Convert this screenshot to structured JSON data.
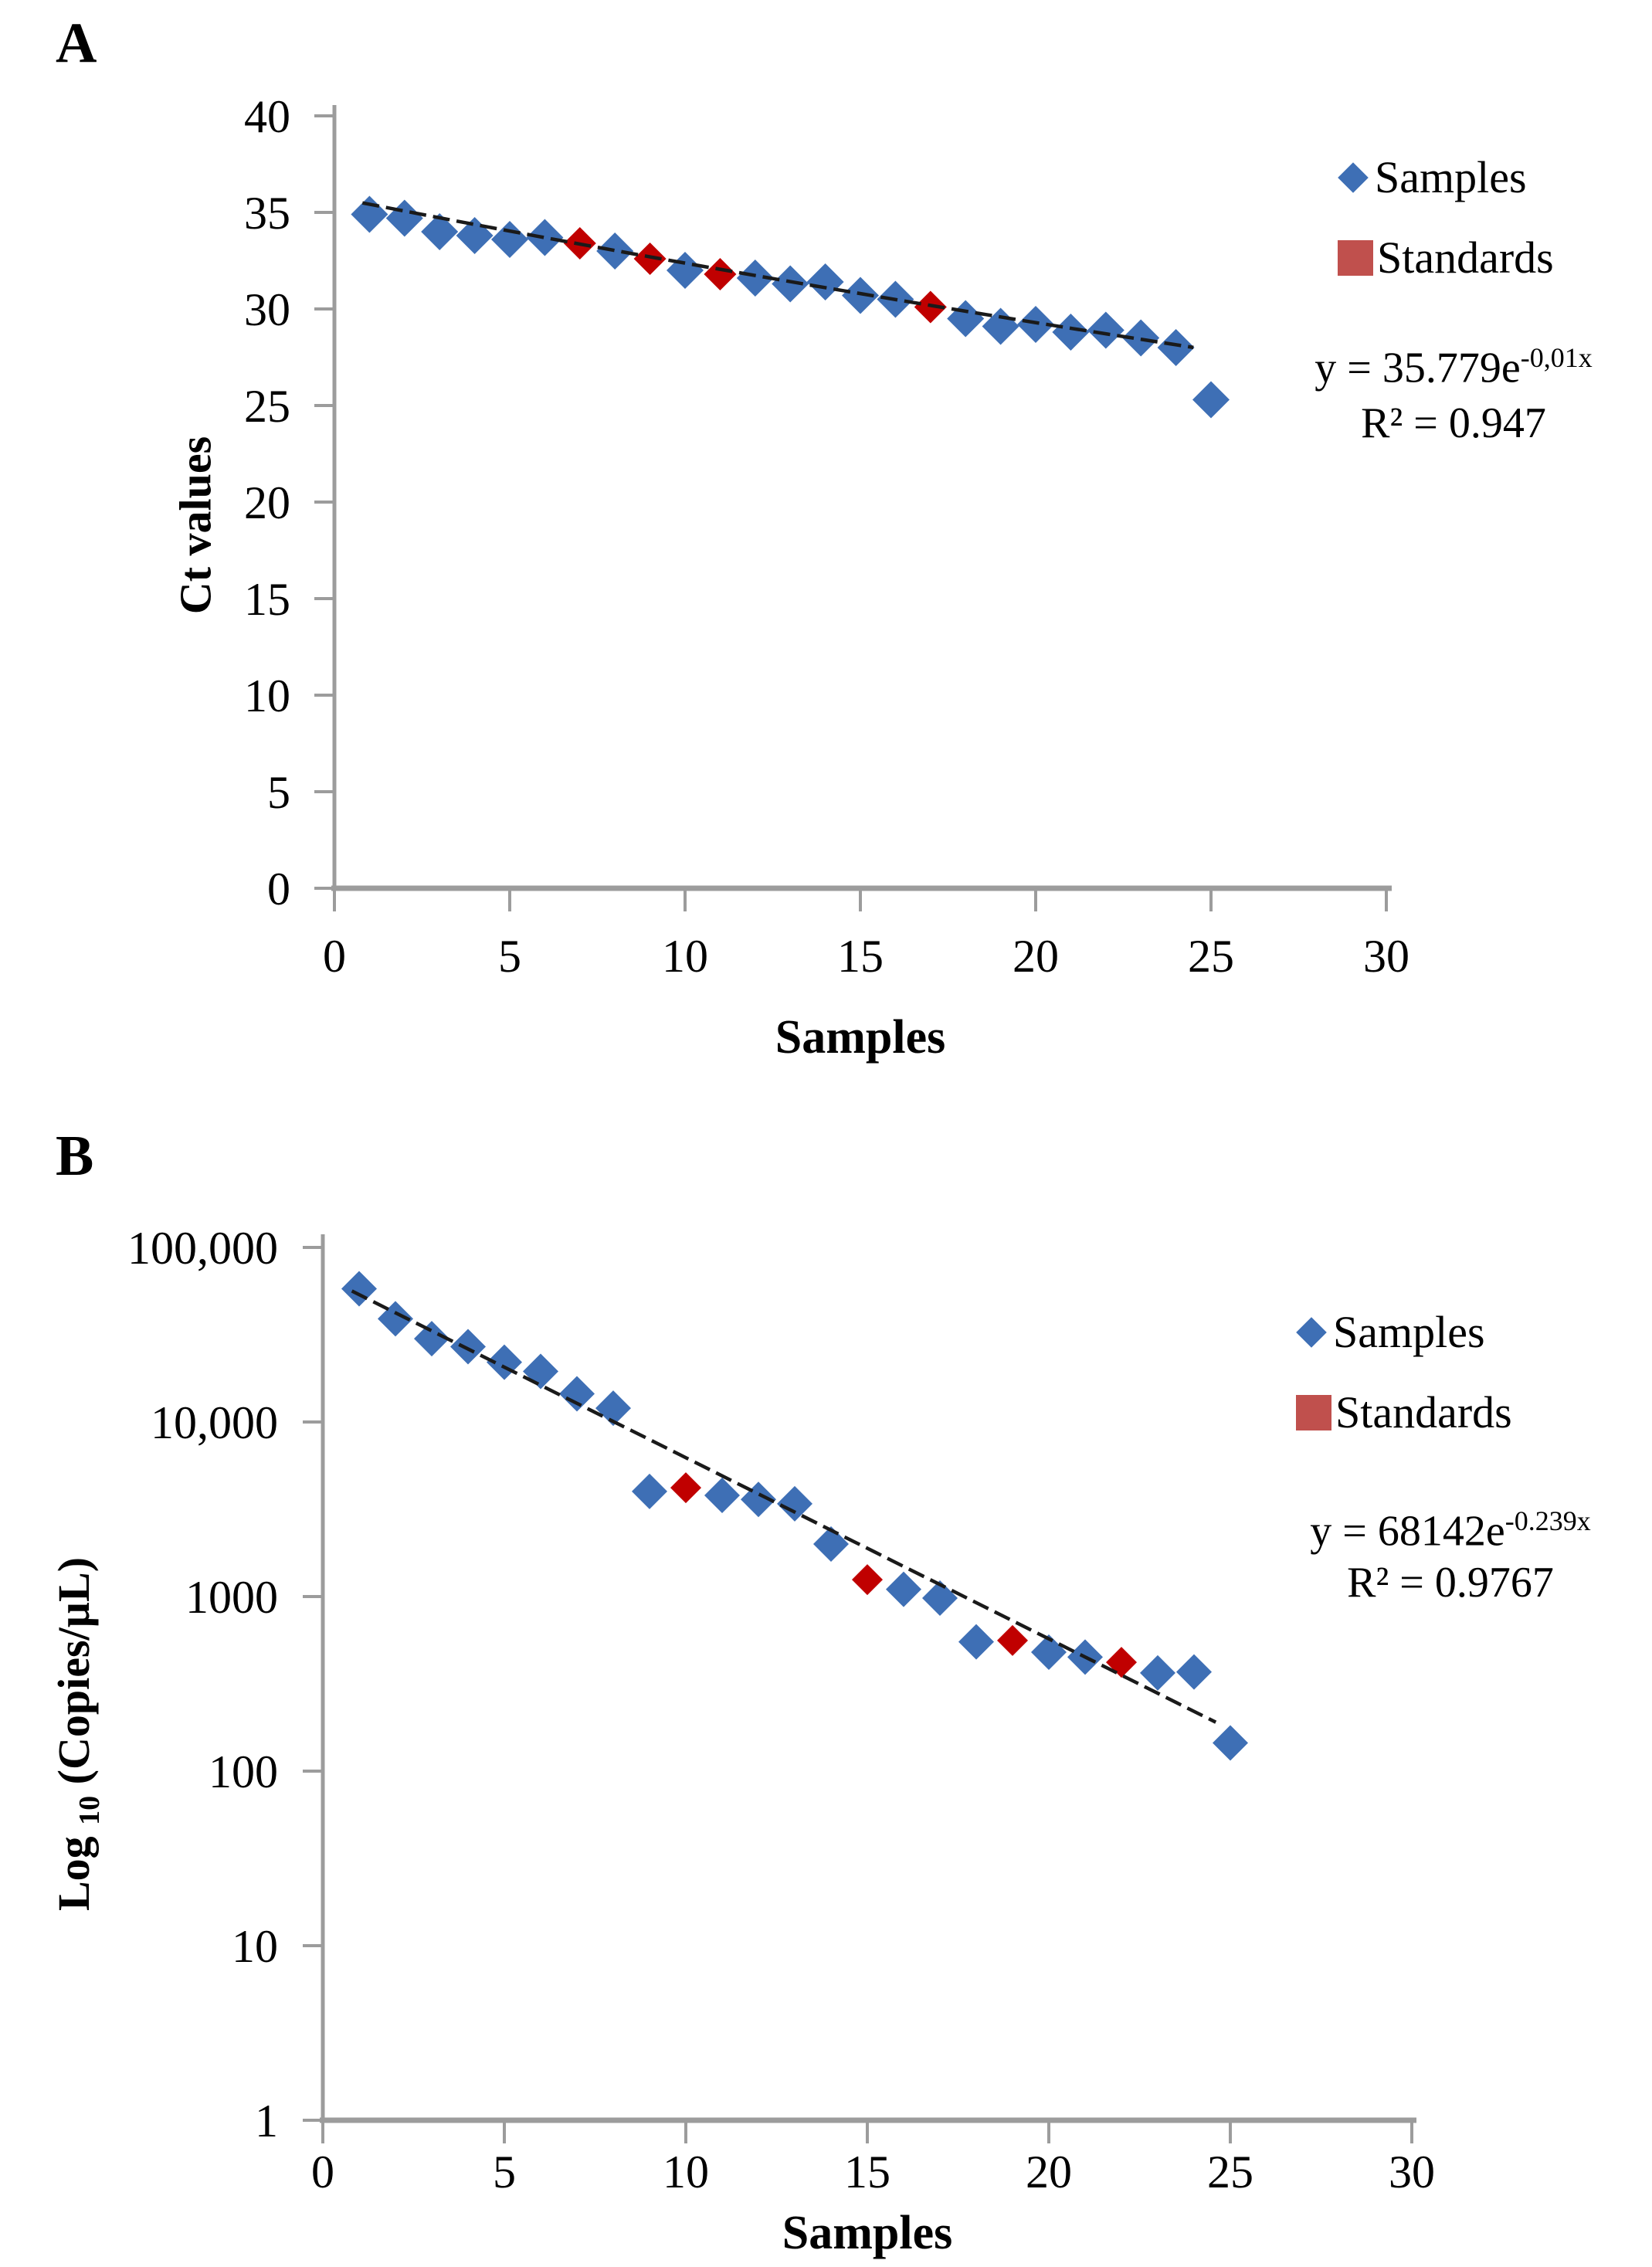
{
  "colors": {
    "samples_blue": "#3E6FB5",
    "standards_red_points": "#C00000",
    "legend_red": "#C0504D",
    "axis_gray": "#9C9C9C",
    "trendline_black": "#1A1A1A",
    "text_black": "#000000"
  },
  "chart_data": [
    {
      "panel": "A",
      "type": "scatter",
      "xlabel": "Samples",
      "ylabel": "Ct values",
      "x_axis": {
        "range": [
          0,
          30
        ],
        "ticks": [
          {
            "v": 0,
            "label": "0"
          },
          {
            "v": 5,
            "label": "5"
          },
          {
            "v": 10,
            "label": "10"
          },
          {
            "v": 15,
            "label": "15"
          },
          {
            "v": 20,
            "label": "20"
          },
          {
            "v": 25,
            "label": "25"
          },
          {
            "v": 30,
            "label": "30"
          }
        ]
      },
      "y_axis": {
        "scale": "linear",
        "range": [
          0,
          40
        ],
        "ticks": [
          {
            "v": 40,
            "label": "40"
          },
          {
            "v": 35,
            "label": "35"
          },
          {
            "v": 30,
            "label": "30"
          },
          {
            "v": 25,
            "label": "25"
          },
          {
            "v": 20,
            "label": "20"
          },
          {
            "v": 15,
            "label": "15"
          },
          {
            "v": 10,
            "label": "10"
          },
          {
            "v": 5,
            "label": "5"
          },
          {
            "v": 0,
            "label": "0"
          }
        ]
      },
      "legend": [
        {
          "label": "Samples",
          "marker": "diamond",
          "color": "#3E6FB5"
        },
        {
          "label": "Standards",
          "marker": "square",
          "color": "#C0504D"
        }
      ],
      "equation": {
        "base": "y = 35.779e",
        "exponent": "-0,01x",
        "r2": "R² = 0.947"
      },
      "trendline": {
        "model": "exponential",
        "a": 35.779,
        "b": -0.01,
        "x_start": 0.8,
        "x_end": 24.5
      },
      "series": [
        {
          "name": "Samples",
          "marker": "diamond",
          "color": "#3E6FB5",
          "points": [
            [
              1,
              34.9
            ],
            [
              2,
              34.7
            ],
            [
              3,
              34.0
            ],
            [
              4,
              33.8
            ],
            [
              5,
              33.6
            ],
            [
              6,
              33.7
            ],
            [
              8,
              33.0
            ],
            [
              10,
              32.0
            ],
            [
              12,
              31.6
            ],
            [
              13,
              31.3
            ],
            [
              14,
              31.4
            ],
            [
              15,
              30.7
            ],
            [
              16,
              30.5
            ],
            [
              18,
              29.5
            ],
            [
              19,
              29.1
            ],
            [
              20,
              29.2
            ],
            [
              21,
              28.8
            ],
            [
              22,
              28.9
            ],
            [
              23,
              28.5
            ],
            [
              24,
              28.0
            ],
            [
              25,
              25.3
            ]
          ]
        },
        {
          "name": "Standards",
          "marker": "diamond",
          "color": "#C00000",
          "points": [
            [
              7,
              33.4
            ],
            [
              9,
              32.6
            ],
            [
              11,
              31.8
            ],
            [
              17,
              30.1
            ]
          ]
        }
      ]
    },
    {
      "panel": "B",
      "type": "scatter",
      "xlabel": "Samples",
      "ylabel_parts": {
        "prefix": "Log ",
        "sub": "10",
        "suffix": " (Copies/µL)"
      },
      "x_axis": {
        "range": [
          0,
          30
        ],
        "ticks": [
          {
            "v": 0,
            "label": "0"
          },
          {
            "v": 5,
            "label": "5"
          },
          {
            "v": 10,
            "label": "10"
          },
          {
            "v": 15,
            "label": "15"
          },
          {
            "v": 20,
            "label": "20"
          },
          {
            "v": 25,
            "label": "25"
          },
          {
            "v": 30,
            "label": "30"
          }
        ]
      },
      "y_axis": {
        "scale": "log",
        "range": [
          1,
          100000
        ],
        "ticks": [
          {
            "v": 100000,
            "label": "100,000"
          },
          {
            "v": 10000,
            "label": "10,000"
          },
          {
            "v": 1000,
            "label": "1000"
          },
          {
            "v": 100,
            "label": "100"
          },
          {
            "v": 10,
            "label": "10"
          },
          {
            "v": 1,
            "label": "1"
          }
        ]
      },
      "legend": [
        {
          "label": "Samples",
          "marker": "diamond",
          "color": "#3E6FB5"
        },
        {
          "label": "Standards",
          "marker": "square",
          "color": "#C0504D"
        }
      ],
      "equation": {
        "base": "y = 68142e",
        "exponent": "-0.239x",
        "r2": "R² = 0.9767"
      },
      "trendline": {
        "model": "exponential",
        "a": 68142,
        "b": -0.239,
        "x_start": 0.8,
        "x_end": 24.6
      },
      "series": [
        {
          "name": "Samples",
          "marker": "diamond",
          "color": "#3E6FB5",
          "points": [
            [
              1,
              58000
            ],
            [
              2,
              39000
            ],
            [
              3,
              30000
            ],
            [
              4,
              27000
            ],
            [
              5,
              22000
            ],
            [
              6,
              19500
            ],
            [
              7,
              14500
            ],
            [
              8,
              12000
            ],
            [
              9,
              4000
            ],
            [
              11,
              3800
            ],
            [
              12,
              3600
            ],
            [
              13,
              3400
            ],
            [
              14,
              2000
            ],
            [
              16,
              1100
            ],
            [
              17,
              980
            ],
            [
              18,
              550
            ],
            [
              20,
              480
            ],
            [
              21,
              450
            ],
            [
              23,
              365
            ],
            [
              24,
              370
            ],
            [
              25,
              145
            ]
          ]
        },
        {
          "name": "Standards",
          "marker": "diamond",
          "color": "#C00000",
          "points": [
            [
              10,
              4200
            ],
            [
              15,
              1250
            ],
            [
              19,
              560
            ],
            [
              22,
              420
            ]
          ]
        }
      ]
    }
  ]
}
